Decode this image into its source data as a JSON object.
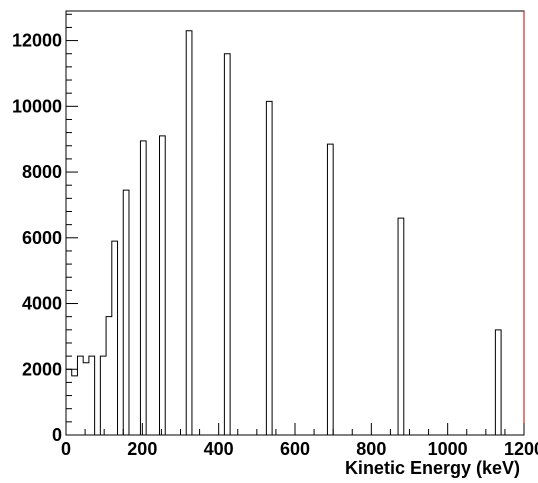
{
  "chart_data": {
    "type": "histogram",
    "title": "",
    "xlabel": "Kinetic Energy (keV)",
    "ylabel": "",
    "xlim": [
      0,
      1200
    ],
    "ylim": [
      0,
      12900
    ],
    "x_ticks": [
      0,
      200,
      400,
      600,
      800,
      1000,
      1200
    ],
    "y_ticks": [
      0,
      2000,
      4000,
      6000,
      8000,
      10000,
      12000
    ],
    "grid": false,
    "bin_width": 15,
    "bins": [
      {
        "x0": 0,
        "x1": 15,
        "y": 2000
      },
      {
        "x0": 15,
        "x1": 30,
        "y": 1800
      },
      {
        "x0": 30,
        "x1": 45,
        "y": 2400
      },
      {
        "x0": 45,
        "x1": 60,
        "y": 2200
      },
      {
        "x0": 60,
        "x1": 75,
        "y": 2400
      },
      {
        "x0": 75,
        "x1": 90,
        "y": 0
      },
      {
        "x0": 90,
        "x1": 105,
        "y": 2400
      },
      {
        "x0": 105,
        "x1": 120,
        "y": 3600
      },
      {
        "x0": 120,
        "x1": 135,
        "y": 5900
      },
      {
        "x0": 135,
        "x1": 150,
        "y": 0
      },
      {
        "x0": 150,
        "x1": 165,
        "y": 7450
      },
      {
        "x0": 195,
        "x1": 210,
        "y": 8950
      },
      {
        "x0": 245,
        "x1": 260,
        "y": 9100
      },
      {
        "x0": 315,
        "x1": 330,
        "y": 12300
      },
      {
        "x0": 415,
        "x1": 430,
        "y": 11600
      },
      {
        "x0": 525,
        "x1": 540,
        "y": 10150
      },
      {
        "x0": 685,
        "x1": 700,
        "y": 8850
      },
      {
        "x0": 870,
        "x1": 885,
        "y": 6600
      },
      {
        "x0": 1125,
        "x1": 1140,
        "y": 3200
      }
    ]
  }
}
